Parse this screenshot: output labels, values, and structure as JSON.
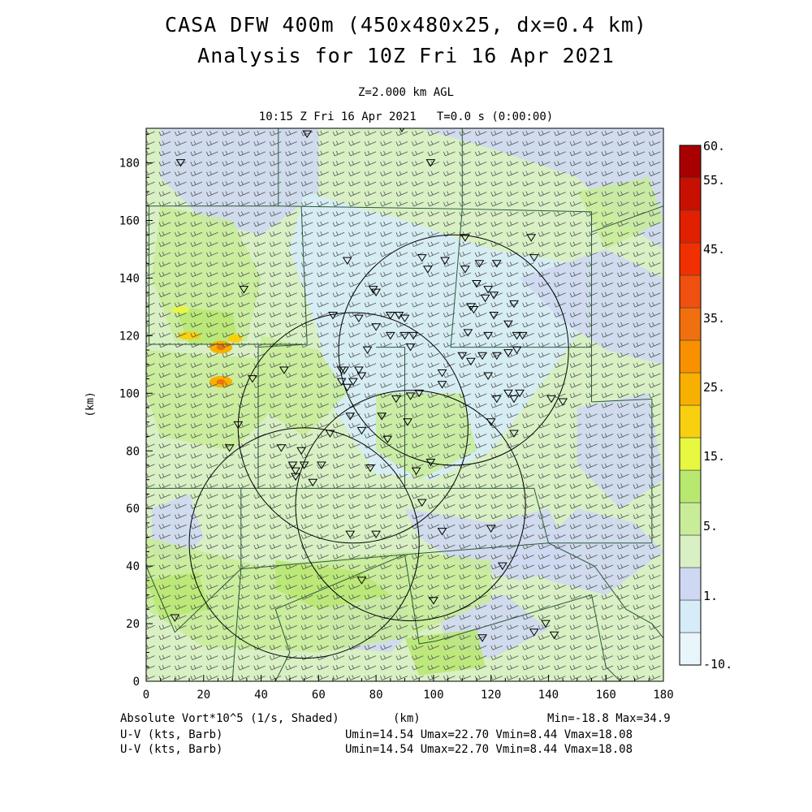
{
  "title": {
    "line1": "CASA DFW 400m (450x480x25, dx=0.4 km)",
    "line2": "Analysis for 10Z Fri 16 Apr 2021"
  },
  "subtitle": {
    "level": "Z=2.000 km AGL",
    "valid": "10:15 Z Fri 16 Apr 2021   T=0.0 s (0:00:00)"
  },
  "axes": {
    "xlabel": "(km)",
    "ylabel": "(km)",
    "xlim": [
      0,
      180
    ],
    "ylim": [
      0,
      192
    ],
    "xticks": [
      "0",
      "20",
      "40",
      "60",
      "80",
      "100",
      "120",
      "140",
      "160",
      "180"
    ],
    "yticks": [
      "0",
      "20",
      "40",
      "60",
      "80",
      "100",
      "120",
      "140",
      "160",
      "180"
    ]
  },
  "colorbar": {
    "labels": [
      "60.",
      "55.",
      "45.",
      "35.",
      "25.",
      "15.",
      "5.",
      "1.",
      "-10."
    ],
    "colors": [
      "#e8f6fc",
      "#d6ecf8",
      "#cfd8f2",
      "#d8f0c4",
      "#c8ec98",
      "#b8e870",
      "#e8f840",
      "#f8d010",
      "#f8b000",
      "#f89000",
      "#f07010",
      "#f05010",
      "#f03000",
      "#e02000",
      "#c81000",
      "#a80000"
    ]
  },
  "footer": {
    "field_label": "Absolute Vort*10^5 (1/s, Shaded)",
    "xunit": "(km)",
    "minmax": "Min=-18.8 Max=34.9",
    "wind1_label": "U-V (kts, Barb)",
    "wind1_stats": "Umin=14.54 Umax=22.70 Vmin=8.44 Vmax=18.08",
    "wind2_label": "U-V (kts, Barb)",
    "wind2_stats": "Umin=14.54 Umax=22.70 Vmin=8.44 Vmax=18.08"
  },
  "chart_data": {
    "type": "heatmap",
    "field": "Absolute Vort*10^5 (1/s, Shaded)",
    "min": -18.8,
    "max": 34.9,
    "radar_rings": [
      {
        "cx": 107,
        "cy": 115,
        "r": 40
      },
      {
        "cx": 72,
        "cy": 88,
        "r": 40
      },
      {
        "cx": 92,
        "cy": 61,
        "r": 40
      },
      {
        "cx": 55,
        "cy": 48,
        "r": 40
      }
    ],
    "stations": [
      [
        56,
        190
      ],
      [
        89,
        192
      ],
      [
        12,
        180
      ],
      [
        99,
        180
      ],
      [
        111,
        154
      ],
      [
        134,
        154
      ],
      [
        135,
        147
      ],
      [
        70,
        146
      ],
      [
        96,
        147
      ],
      [
        104,
        146
      ],
      [
        98,
        143
      ],
      [
        111,
        143
      ],
      [
        116,
        145
      ],
      [
        122,
        145
      ],
      [
        34,
        136
      ],
      [
        79,
        136
      ],
      [
        80,
        135
      ],
      [
        115,
        138
      ],
      [
        119,
        136
      ],
      [
        121,
        134
      ],
      [
        118,
        133
      ],
      [
        128,
        131
      ],
      [
        113,
        130
      ],
      [
        114,
        129
      ],
      [
        121,
        127
      ],
      [
        65,
        127
      ],
      [
        74,
        126
      ],
      [
        85,
        127
      ],
      [
        88,
        127
      ],
      [
        90,
        126
      ],
      [
        126,
        124
      ],
      [
        80,
        123
      ],
      [
        85,
        120
      ],
      [
        90,
        120
      ],
      [
        93,
        120
      ],
      [
        112,
        121
      ],
      [
        119,
        120
      ],
      [
        129,
        120
      ],
      [
        131,
        120
      ],
      [
        77,
        115
      ],
      [
        92,
        116
      ],
      [
        110,
        113
      ],
      [
        117,
        113
      ],
      [
        122,
        113
      ],
      [
        126,
        114
      ],
      [
        129,
        115
      ],
      [
        48,
        108
      ],
      [
        68,
        108
      ],
      [
        69,
        108
      ],
      [
        74,
        108
      ],
      [
        113,
        111
      ],
      [
        103,
        107
      ],
      [
        37,
        105
      ],
      [
        68,
        104
      ],
      [
        72,
        104
      ],
      [
        70,
        102
      ],
      [
        75,
        106
      ],
      [
        103,
        103
      ],
      [
        119,
        106
      ],
      [
        87,
        98
      ],
      [
        92,
        99
      ],
      [
        95,
        100
      ],
      [
        122,
        98
      ],
      [
        128,
        98
      ],
      [
        126,
        100
      ],
      [
        145,
        97
      ],
      [
        141,
        98
      ],
      [
        130,
        100
      ],
      [
        82,
        92
      ],
      [
        71,
        92
      ],
      [
        91,
        90
      ],
      [
        120,
        90
      ],
      [
        32,
        89
      ],
      [
        75,
        87
      ],
      [
        64,
        86
      ],
      [
        84,
        84
      ],
      [
        128,
        86
      ],
      [
        47,
        81
      ],
      [
        29,
        81
      ],
      [
        54,
        80
      ],
      [
        99,
        76
      ],
      [
        51,
        75
      ],
      [
        55,
        75
      ],
      [
        61,
        75
      ],
      [
        78,
        74
      ],
      [
        52,
        73
      ],
      [
        52,
        71
      ],
      [
        58,
        69
      ],
      [
        94,
        73
      ],
      [
        96,
        62
      ],
      [
        120,
        53
      ],
      [
        103,
        52
      ],
      [
        71,
        51
      ],
      [
        80,
        51
      ],
      [
        124,
        40
      ],
      [
        75,
        35
      ],
      [
        100,
        28
      ],
      [
        10,
        22
      ],
      [
        139,
        20
      ],
      [
        142,
        16
      ],
      [
        135,
        17
      ],
      [
        117,
        15
      ]
    ],
    "barb_grid": {
      "dx_km": 5.5,
      "dy_km": 3.5
    },
    "wind_uv_range": {
      "umin": 14.54,
      "umax": 22.7,
      "vmin": 8.44,
      "vmax": 18.08
    }
  }
}
